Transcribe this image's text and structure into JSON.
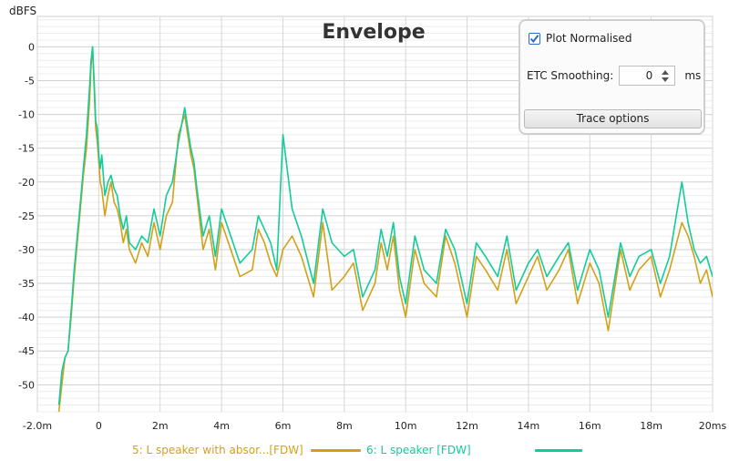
{
  "chart_data": {
    "type": "line",
    "title": "Envelope",
    "ylabel": "dBFS",
    "xlabel": "",
    "xlim": [
      -2.0,
      20
    ],
    "ylim": [
      -54,
      4.5
    ],
    "x_ticks": [
      "-2.0m",
      "0",
      "2m",
      "4m",
      "6m",
      "8m",
      "10m",
      "12m",
      "14m",
      "16m",
      "18m",
      "20ms"
    ],
    "y_ticks": [
      "0",
      "-5",
      "-10",
      "-15",
      "-20",
      "-25",
      "-30",
      "-35",
      "-40",
      "-45",
      "-50"
    ],
    "grid": true,
    "legend_position": "bottom",
    "series": [
      {
        "name": "5: L speaker with absor...[FDW]",
        "color": "#d4a017",
        "x": [
          -1.3,
          -1.2,
          -1.1,
          -1.0,
          -0.9,
          -0.8,
          -0.7,
          -0.6,
          -0.5,
          -0.4,
          -0.3,
          -0.25,
          -0.2,
          -0.15,
          -0.1,
          -0.05,
          0.0,
          0.05,
          0.1,
          0.2,
          0.3,
          0.4,
          0.5,
          0.6,
          0.7,
          0.8,
          0.9,
          1.0,
          1.2,
          1.4,
          1.6,
          1.8,
          2.0,
          2.2,
          2.4,
          2.6,
          2.8,
          2.9,
          3.0,
          3.1,
          3.2,
          3.4,
          3.6,
          3.8,
          4.0,
          4.3,
          4.6,
          5.0,
          5.2,
          5.4,
          5.6,
          5.8,
          6.0,
          6.3,
          6.6,
          7.0,
          7.3,
          7.6,
          8.0,
          8.3,
          8.6,
          9.0,
          9.2,
          9.4,
          9.6,
          9.8,
          10.0,
          10.3,
          10.6,
          11.0,
          11.3,
          11.6,
          12.0,
          12.3,
          12.6,
          13.0,
          13.3,
          13.6,
          14.0,
          14.3,
          14.6,
          15.0,
          15.3,
          15.6,
          16.0,
          16.3,
          16.6,
          17.0,
          17.3,
          17.6,
          18.0,
          18.3,
          18.6,
          19.0,
          19.2,
          19.4,
          19.6,
          19.8,
          20.0
        ],
        "values": [
          -54,
          -50,
          -46,
          -45,
          -40,
          -34,
          -29,
          -24,
          -19,
          -15,
          -8,
          -3,
          0,
          -6,
          -12,
          -14,
          -17,
          -20,
          -21,
          -25,
          -22,
          -20,
          -23,
          -24,
          -26,
          -29,
          -27,
          -30,
          -32,
          -29,
          -31,
          -26,
          -30,
          -25,
          -23,
          -13,
          -10,
          -13,
          -16,
          -18,
          -22,
          -30,
          -27,
          -33,
          -26,
          -30,
          -34,
          -33,
          -27,
          -29,
          -32,
          -34,
          -30,
          -28,
          -31,
          -37,
          -26,
          -36,
          -34,
          -32,
          -39,
          -35,
          -29,
          -33,
          -28,
          -36,
          -40,
          -30,
          -35,
          -37,
          -28,
          -32,
          -40,
          -31,
          -33,
          -36,
          -30,
          -38,
          -34,
          -31,
          -36,
          -33,
          -30,
          -38,
          -32,
          -35,
          -42,
          -30,
          -36,
          -33,
          -31,
          -37,
          -33,
          -26,
          -28,
          -31,
          -35,
          -33,
          -37
        ]
      },
      {
        "name": "6: L speaker [FDW]",
        "color": "#12cc9a",
        "x": [
          -1.3,
          -1.2,
          -1.1,
          -1.0,
          -0.9,
          -0.8,
          -0.7,
          -0.6,
          -0.5,
          -0.4,
          -0.3,
          -0.25,
          -0.2,
          -0.15,
          -0.1,
          -0.05,
          0.0,
          0.05,
          0.1,
          0.2,
          0.3,
          0.4,
          0.5,
          0.6,
          0.7,
          0.8,
          0.9,
          1.0,
          1.2,
          1.4,
          1.6,
          1.8,
          2.0,
          2.2,
          2.4,
          2.6,
          2.8,
          2.9,
          3.0,
          3.1,
          3.2,
          3.4,
          3.6,
          3.8,
          4.0,
          4.3,
          4.6,
          5.0,
          5.2,
          5.4,
          5.6,
          5.8,
          6.0,
          6.3,
          6.6,
          7.0,
          7.3,
          7.6,
          8.0,
          8.3,
          8.6,
          9.0,
          9.2,
          9.4,
          9.6,
          9.8,
          10.0,
          10.3,
          10.6,
          11.0,
          11.3,
          11.6,
          12.0,
          12.3,
          12.6,
          13.0,
          13.3,
          13.6,
          14.0,
          14.3,
          14.6,
          15.0,
          15.3,
          15.6,
          16.0,
          16.3,
          16.6,
          17.0,
          17.3,
          17.6,
          18.0,
          18.3,
          18.6,
          19.0,
          19.2,
          19.4,
          19.6,
          19.8,
          20.0
        ],
        "values": [
          -53,
          -48,
          -46,
          -45,
          -39,
          -33,
          -28,
          -23,
          -18,
          -13,
          -6,
          -2,
          0,
          -5,
          -11,
          -12,
          -16,
          -18,
          -16,
          -22,
          -20,
          -19,
          -21,
          -22,
          -25,
          -27,
          -25,
          -29,
          -30,
          -28,
          -29,
          -24,
          -28,
          -22,
          -20,
          -14,
          -9,
          -12,
          -15,
          -17,
          -21,
          -28,
          -25,
          -31,
          -24,
          -28,
          -32,
          -30,
          -25,
          -27,
          -29,
          -33,
          -13,
          -24,
          -28,
          -35,
          -24,
          -29,
          -31,
          -30,
          -37,
          -33,
          -27,
          -31,
          -26,
          -34,
          -38,
          -28,
          -33,
          -35,
          -27,
          -30,
          -38,
          -29,
          -31,
          -34,
          -28,
          -36,
          -32,
          -30,
          -34,
          -31,
          -29,
          -36,
          -30,
          -33,
          -40,
          -29,
          -34,
          -31,
          -30,
          -35,
          -31,
          -20,
          -26,
          -30,
          -32,
          -31,
          -34
        ]
      }
    ]
  },
  "controls": {
    "plot_normalised_label": "Plot Normalised",
    "plot_normalised_checked": true,
    "etc_smoothing_label": "ETC Smoothing:",
    "etc_smoothing_value": "0",
    "etc_smoothing_unit": "ms",
    "trace_options_label": "Trace options"
  }
}
